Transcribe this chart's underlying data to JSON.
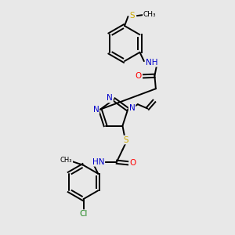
{
  "background_color": "#e8e8e8",
  "atom_colors": {
    "N": "#0000cc",
    "O": "#ff0000",
    "S": "#ccaa00",
    "Cl": "#228822",
    "C": "#000000"
  },
  "bond_color": "#000000",
  "bond_width": 1.4,
  "figsize": [
    3.0,
    3.0
  ],
  "dpi": 100,
  "xlim": [
    0,
    10
  ],
  "ylim": [
    0,
    10
  ]
}
